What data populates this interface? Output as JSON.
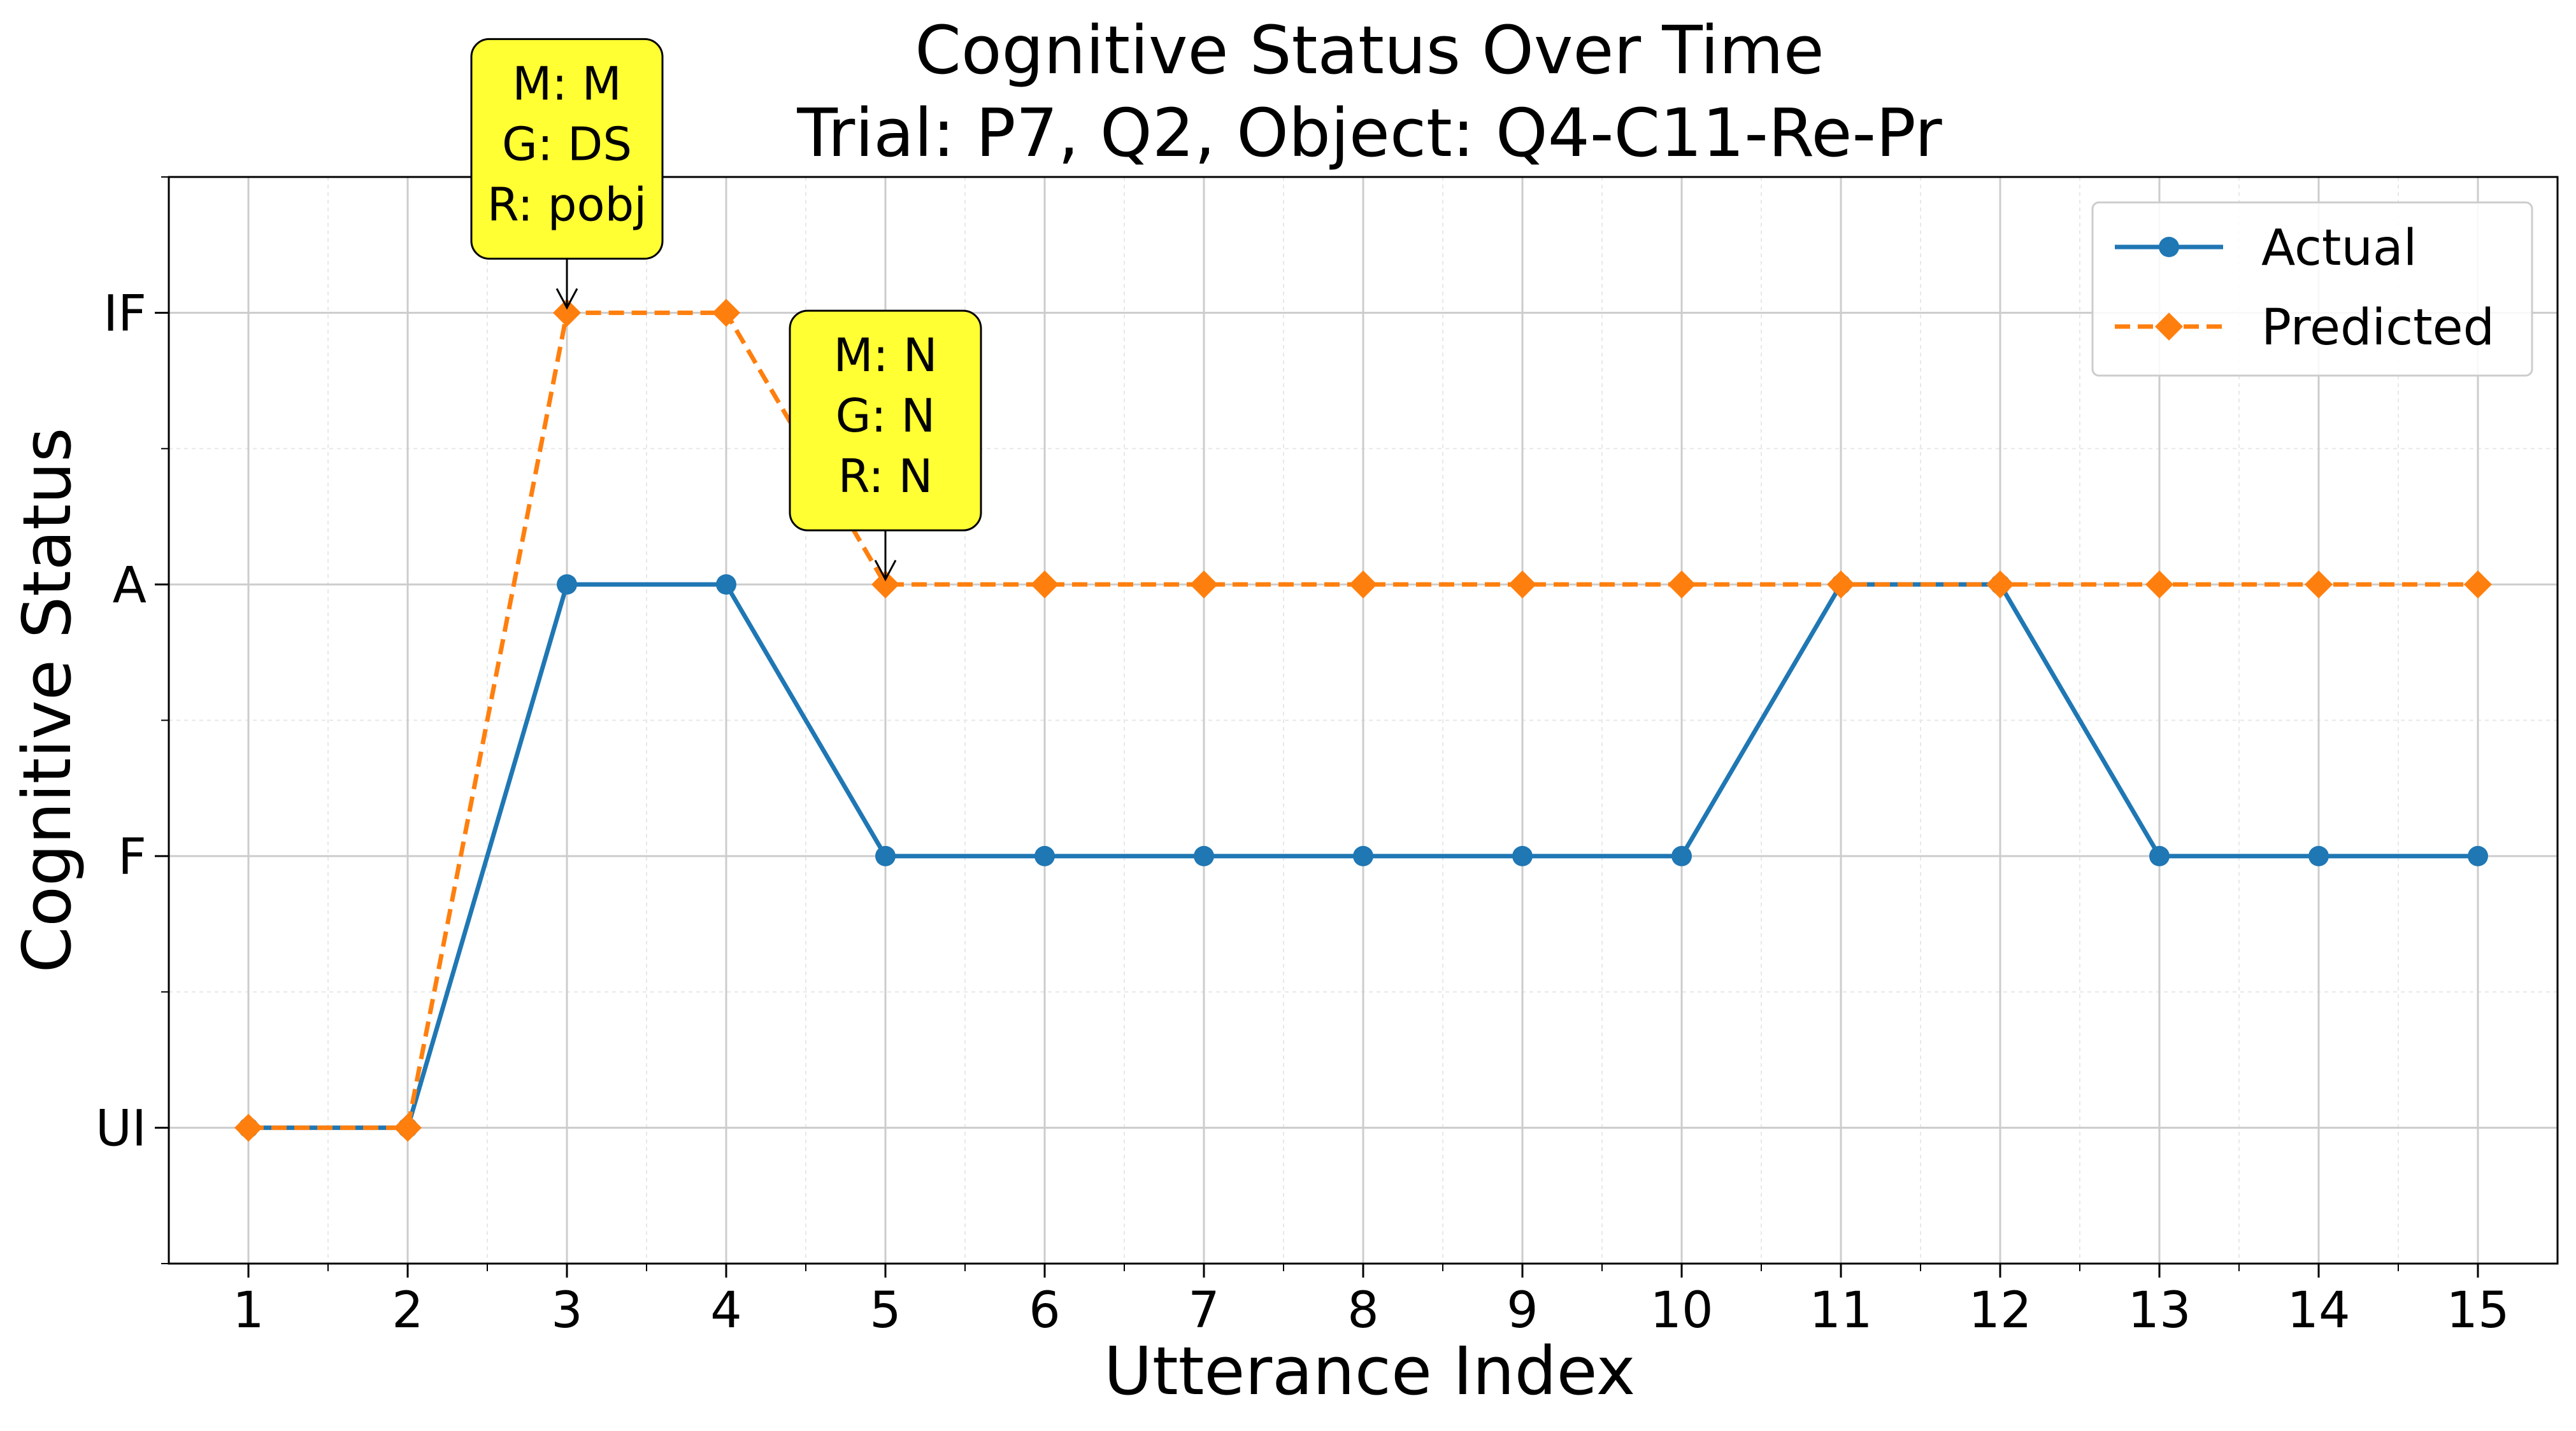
{
  "chart_data": {
    "type": "line",
    "title": "Cognitive Status Over Time",
    "subtitle": "Trial: P7, Q2, Object: Q4-C11-Re-Pr",
    "xlabel": "Utterance Index",
    "ylabel": "Cognitive Status",
    "x": [
      1,
      2,
      3,
      4,
      5,
      6,
      7,
      8,
      9,
      10,
      11,
      12,
      13,
      14,
      15
    ],
    "x_tick_labels": [
      "1",
      "2",
      "3",
      "4",
      "5",
      "6",
      "7",
      "8",
      "9",
      "10",
      "11",
      "12",
      "13",
      "14",
      "15"
    ],
    "y_categories": [
      "UI",
      "F",
      "A",
      "IF"
    ],
    "y_category_values": [
      0,
      1,
      2,
      3
    ],
    "xlim": [
      0.5,
      15.5
    ],
    "ylim": [
      -0.5,
      3.5
    ],
    "grid": true,
    "minor_grid": true,
    "legend_position": "top-right",
    "series": [
      {
        "name": "Actual",
        "values": [
          "UI",
          "UI",
          "A",
          "A",
          "F",
          "F",
          "F",
          "F",
          "F",
          "F",
          "A",
          "A",
          "F",
          "F",
          "F"
        ],
        "color": "#1f77b4",
        "line_style": "solid",
        "marker": "circle"
      },
      {
        "name": "Predicted",
        "values": [
          "UI",
          "UI",
          "IF",
          "IF",
          "A",
          "A",
          "A",
          "A",
          "A",
          "A",
          "A",
          "A",
          "A",
          "A",
          "A"
        ],
        "color": "#ff7f0e",
        "line_style": "dashed",
        "marker": "diamond"
      }
    ],
    "annotations": [
      {
        "x": 3,
        "y": "IF",
        "lines": [
          "M: M",
          "G: DS",
          "R: pobj"
        ],
        "box_color": "#ffff33"
      },
      {
        "x": 5,
        "y": "A",
        "lines": [
          "M: N",
          "G: N",
          "R: N"
        ],
        "box_color": "#ffff33"
      }
    ]
  }
}
